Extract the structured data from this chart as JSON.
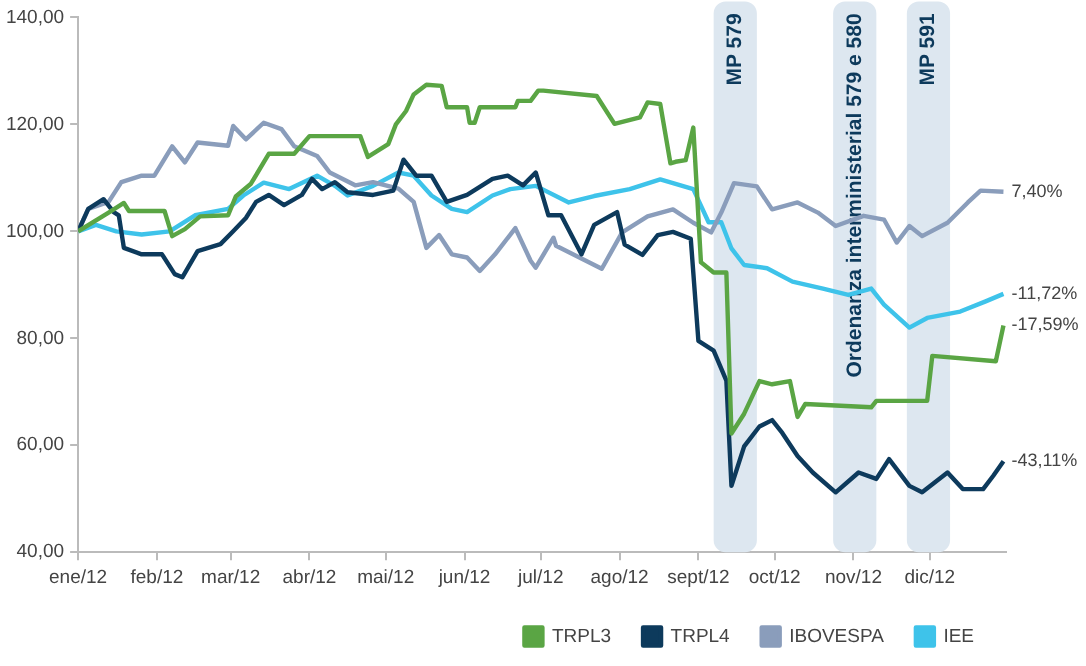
{
  "chart_data": {
    "type": "line",
    "xlim": [
      "2012-01-01",
      "2012-12-31"
    ],
    "ylim": [
      40,
      140
    ],
    "xticks": [
      {
        "value": "2012-01",
        "label": "ene/12"
      },
      {
        "value": "2012-02",
        "label": "feb/12"
      },
      {
        "value": "2012-03",
        "label": "mar/12"
      },
      {
        "value": "2012-04",
        "label": "abr/12"
      },
      {
        "value": "2012-05",
        "label": "mai/12"
      },
      {
        "value": "2012-06",
        "label": "jun/12"
      },
      {
        "value": "2012-07",
        "label": "jul/12"
      },
      {
        "value": "2012-08",
        "label": "ago/12"
      },
      {
        "value": "2012-09",
        "label": "sept/12"
      },
      {
        "value": "2012-10",
        "label": "oct/12"
      },
      {
        "value": "2012-11",
        "label": "nov/12"
      },
      {
        "value": "2012-12",
        "label": "dic/12"
      }
    ],
    "yticks": [
      {
        "value": 40,
        "label": "40,00"
      },
      {
        "value": 60,
        "label": "60,00"
      },
      {
        "value": 80,
        "label": "80,00"
      },
      {
        "value": 100,
        "label": "100,00"
      },
      {
        "value": 120,
        "label": "120,00"
      },
      {
        "value": 140,
        "label": "140,00"
      }
    ],
    "grid": false,
    "legend": "bottom right",
    "marker": "none",
    "line_style": "solid",
    "series": [
      {
        "name": "TRPL3",
        "color": "#5aa544",
        "x": [
          "2012-01-01",
          "2012-01-13",
          "2012-01-19",
          "2012-01-21",
          "2012-02-04",
          "2012-02-07",
          "2012-02-12",
          "2012-02-18",
          "2012-02-29",
          "2012-03-03",
          "2012-03-09",
          "2012-03-16",
          "2012-03-26",
          "2012-04-01",
          "2012-04-21",
          "2012-04-24",
          "2012-05-02",
          "2012-05-05",
          "2012-05-09",
          "2012-05-12",
          "2012-05-17",
          "2012-05-23",
          "2012-05-25",
          "2012-06-02",
          "2012-06-03",
          "2012-06-05",
          "2012-06-07",
          "2012-06-21",
          "2012-06-22",
          "2012-06-27",
          "2012-06-30",
          "2012-07-02",
          "2012-07-23",
          "2012-07-30",
          "2012-08-09",
          "2012-08-12",
          "2012-08-17",
          "2012-08-21",
          "2012-08-23",
          "2012-08-27",
          "2012-08-30",
          "2012-09-02",
          "2012-09-07",
          "2012-09-12",
          "2012-09-14",
          "2012-09-19",
          "2012-09-25",
          "2012-09-30",
          "2012-10-07",
          "2012-10-10",
          "2012-10-13",
          "2012-11-08",
          "2012-11-10",
          "2012-11-30",
          "2012-12-02",
          "2012-12-27",
          "2012-12-30"
        ],
        "values": [
          100,
          103.5,
          105.3,
          103.8,
          103.8,
          99.1,
          100.4,
          102.8,
          103,
          106.5,
          108.9,
          114.5,
          114.5,
          117.8,
          117.8,
          113.9,
          116.3,
          120,
          122.5,
          125.6,
          127.4,
          127.2,
          123.2,
          123.2,
          120.3,
          120.3,
          123.2,
          123.2,
          124.4,
          124.4,
          126.3,
          126.3,
          125.3,
          120.1,
          121.3,
          124.1,
          123.8,
          112.7,
          113,
          113.3,
          119.4,
          94.2,
          92.3,
          92.3,
          62.2,
          65.9,
          72,
          71.4,
          72,
          65.3,
          67.7,
          67.1,
          68.3,
          68.3,
          76.7,
          75.7,
          82.4
        ]
      },
      {
        "name": "TRPL4",
        "color": "#0d3a5c",
        "x": [
          "2012-01-01",
          "2012-01-05",
          "2012-01-11",
          "2012-01-15",
          "2012-01-17",
          "2012-01-19",
          "2012-01-26",
          "2012-02-03",
          "2012-02-08",
          "2012-02-11",
          "2012-02-17",
          "2012-02-26",
          "2012-03-02",
          "2012-03-07",
          "2012-03-11",
          "2012-03-16",
          "2012-03-22",
          "2012-03-29",
          "2012-04-02",
          "2012-04-06",
          "2012-04-11",
          "2012-04-16",
          "2012-04-26",
          "2012-05-04",
          "2012-05-08",
          "2012-05-13",
          "2012-05-19",
          "2012-05-25",
          "2012-06-02",
          "2012-06-12",
          "2012-06-18",
          "2012-06-24",
          "2012-06-29",
          "2012-07-04",
          "2012-07-09",
          "2012-07-17",
          "2012-07-22",
          "2012-07-31",
          "2012-08-03",
          "2012-08-10",
          "2012-08-16",
          "2012-08-22",
          "2012-08-29",
          "2012-09-01",
          "2012-09-07",
          "2012-09-12",
          "2012-09-14",
          "2012-09-19",
          "2012-09-25",
          "2012-09-30",
          "2012-10-04",
          "2012-10-10",
          "2012-10-16",
          "2012-10-25",
          "2012-11-03",
          "2012-11-10",
          "2012-11-15",
          "2012-11-23",
          "2012-11-28",
          "2012-12-08",
          "2012-12-14",
          "2012-12-22",
          "2012-12-26",
          "2012-12-30"
        ],
        "values": [
          100,
          104.2,
          106,
          103.6,
          103,
          96.9,
          95.7,
          95.7,
          92,
          91.4,
          96.3,
          97.6,
          100,
          102.5,
          105.5,
          106.8,
          104.9,
          106.8,
          109.8,
          107.9,
          109.2,
          107.3,
          106.8,
          107.6,
          113.4,
          110.4,
          110.4,
          105.5,
          106.8,
          109.8,
          110.4,
          108.6,
          111,
          103,
          103,
          95.7,
          101.2,
          103.6,
          97.5,
          95.6,
          99.3,
          99.9,
          98.6,
          79.5,
          77.7,
          72.1,
          52.4,
          59.8,
          63.5,
          64.7,
          62.3,
          58,
          54.9,
          51.2,
          54.9,
          53.7,
          57.4,
          52.4,
          51.2,
          54.9,
          51.8,
          51.8,
          54.3,
          57
        ]
      },
      {
        "name": "IBOVESPA",
        "color": "#8a9dbb",
        "x": [
          "2012-01-01",
          "2012-01-05",
          "2012-01-13",
          "2012-01-18",
          "2012-01-26",
          "2012-01-31",
          "2012-02-07",
          "2012-02-12",
          "2012-02-17",
          "2012-02-29",
          "2012-03-02",
          "2012-03-07",
          "2012-03-14",
          "2012-03-21",
          "2012-03-26",
          "2012-04-04",
          "2012-04-09",
          "2012-04-19",
          "2012-04-26",
          "2012-05-06",
          "2012-05-12",
          "2012-05-17",
          "2012-05-22",
          "2012-05-27",
          "2012-06-02",
          "2012-06-07",
          "2012-06-13",
          "2012-06-21",
          "2012-06-27",
          "2012-06-29",
          "2012-07-06",
          "2012-07-07",
          "2012-07-25",
          "2012-08-02",
          "2012-08-12",
          "2012-08-22",
          "2012-08-30",
          "2012-09-06",
          "2012-09-10",
          "2012-09-15",
          "2012-09-24",
          "2012-09-30",
          "2012-10-10",
          "2012-10-18",
          "2012-10-25",
          "2012-11-05",
          "2012-11-13",
          "2012-11-18",
          "2012-11-23",
          "2012-11-28",
          "2012-12-08",
          "2012-12-16",
          "2012-12-21",
          "2012-12-30"
        ],
        "values": [
          100,
          104.2,
          105.5,
          109.2,
          110.4,
          110.4,
          115.9,
          112.9,
          116.6,
          116,
          119.7,
          117.2,
          120.3,
          119.1,
          115.9,
          114.1,
          111,
          108.6,
          109.2,
          108,
          105.5,
          96.9,
          99.3,
          95.7,
          95.1,
          92.6,
          95.7,
          100.6,
          94.5,
          93.2,
          98.8,
          97.3,
          93,
          99.8,
          102.8,
          104.1,
          101.6,
          99.8,
          103.5,
          109,
          108.4,
          104.1,
          105.4,
          103.5,
          101,
          102.9,
          102.2,
          97.9,
          101,
          99.1,
          101.6,
          105.4,
          107.6,
          107.4
        ]
      },
      {
        "name": "IEE",
        "color": "#3ec3ea",
        "x": [
          "2012-01-01",
          "2012-01-08",
          "2012-01-16",
          "2012-01-26",
          "2012-02-06",
          "2012-02-16",
          "2012-02-29",
          "2012-03-06",
          "2012-03-14",
          "2012-03-24",
          "2012-04-04",
          "2012-04-11",
          "2012-04-16",
          "2012-04-26",
          "2012-05-06",
          "2012-05-12",
          "2012-05-19",
          "2012-05-27",
          "2012-06-02",
          "2012-06-12",
          "2012-06-19",
          "2012-06-29",
          "2012-07-12",
          "2012-07-22",
          "2012-08-05",
          "2012-08-17",
          "2012-08-30",
          "2012-09-05",
          "2012-09-10",
          "2012-09-14",
          "2012-09-19",
          "2012-09-28",
          "2012-10-08",
          "2012-10-20",
          "2012-10-30",
          "2012-11-08",
          "2012-11-13",
          "2012-11-23",
          "2012-11-30",
          "2012-12-13",
          "2012-12-23",
          "2012-12-30"
        ],
        "values": [
          100,
          101.2,
          100,
          99.4,
          100,
          103,
          104.2,
          106.7,
          109.1,
          107.9,
          110.4,
          108.5,
          106.7,
          108.5,
          111,
          110.4,
          106.7,
          104.2,
          103.6,
          106.7,
          107.9,
          108.5,
          105.4,
          106.6,
          107.9,
          109.7,
          107.9,
          101.7,
          101.7,
          96.8,
          93.7,
          93.1,
          90.6,
          89.3,
          88.1,
          89.3,
          86.3,
          82,
          83.8,
          85,
          86.9,
          88.3
        ]
      }
    ],
    "bands": [
      {
        "axis": "x",
        "from": "2012-09-07",
        "to": "2012-09-24",
        "label": "MP 579",
        "color": "#dde7f0"
      },
      {
        "axis": "x",
        "from": "2012-10-24",
        "to": "2012-11-10",
        "label": "Ordenanza interministerial 579 e 580",
        "color": "#dde7f0"
      },
      {
        "axis": "x",
        "from": "2012-11-22",
        "to": "2012-12-09",
        "label": "MP 591",
        "color": "#dde7f0"
      }
    ],
    "annotations": [
      {
        "text": "7,40%",
        "x": "2012-12-30",
        "y": 107.4
      },
      {
        "text": "-11,72%",
        "x": "2012-12-30",
        "y": 88.3
      },
      {
        "text": "-17,59%",
        "x": "2012-12-30",
        "y": 82.4
      },
      {
        "text": "-43,11%",
        "x": "2012-12-30",
        "y": 57
      }
    ]
  }
}
